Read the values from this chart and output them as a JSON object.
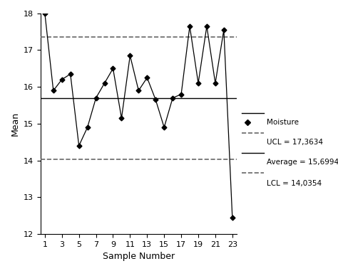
{
  "x": [
    1,
    2,
    3,
    4,
    5,
    6,
    7,
    8,
    9,
    10,
    11,
    12,
    13,
    14,
    15,
    16,
    17,
    18,
    19,
    20,
    21,
    22,
    23
  ],
  "y": [
    18.0,
    15.9,
    16.2,
    16.35,
    14.4,
    14.9,
    15.7,
    16.1,
    16.5,
    15.15,
    16.85,
    15.9,
    16.25,
    15.65,
    14.9,
    15.7,
    15.8,
    17.65,
    16.1,
    17.65,
    16.1,
    17.55,
    12.45
  ],
  "ucl": 17.3634,
  "average": 15.6994,
  "lcl": 14.0354,
  "ylim": [
    12,
    18
  ],
  "xlabel": "Sample Number",
  "ylabel": "Mean",
  "xticks": [
    1,
    3,
    5,
    7,
    9,
    11,
    13,
    15,
    17,
    19,
    21,
    23
  ],
  "yticks": [
    12,
    13,
    14,
    15,
    16,
    17,
    18
  ],
  "line_color": "#000000",
  "marker": "D",
  "markersize": 3.5,
  "ucl_label": "UCL = 17,3634",
  "avg_label": "Average = 15,6994",
  "lcl_label": "LCL = 14,0354",
  "moisture_label": "Moisture",
  "background_color": "#ffffff",
  "figsize": [
    4.74,
    3.74
  ],
  "dpi": 100
}
